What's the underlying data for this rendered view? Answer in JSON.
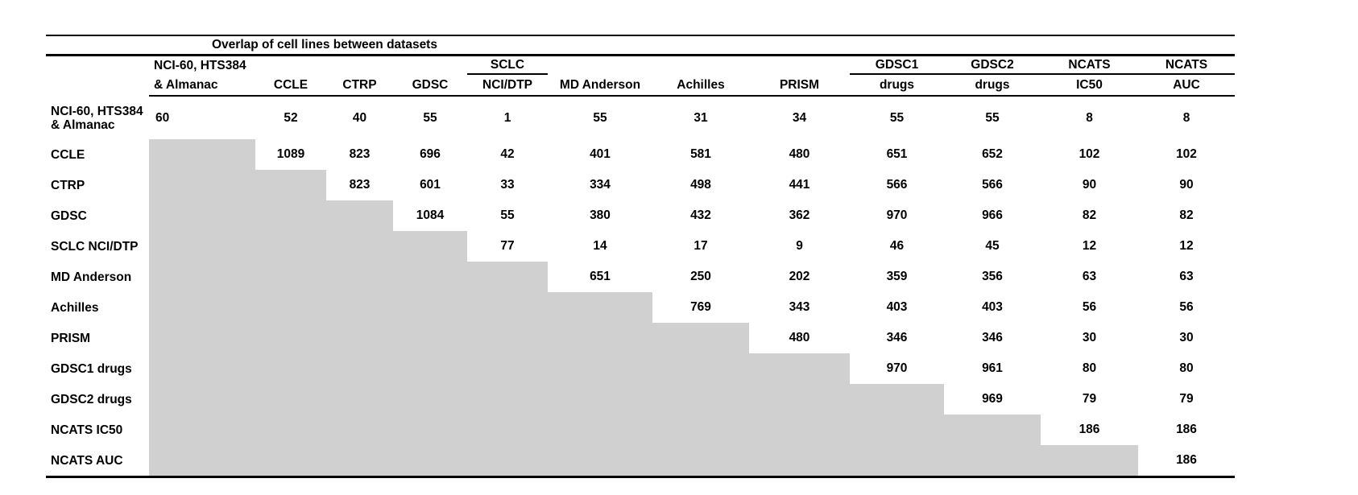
{
  "title": "Overlap of cell lines between datasets",
  "colors": {
    "background": "#ffffff",
    "text": "#000000",
    "rules": "#000000",
    "shaded_cell": "#d0d0d0"
  },
  "table": {
    "columns": [
      {
        "id": "nci60-almanac",
        "line1": "NCI-60, HTS384",
        "line2": "& Almanac",
        "align": "left",
        "underline": false
      },
      {
        "id": "ccle",
        "line1": "",
        "line2": "CCLE",
        "underline": false
      },
      {
        "id": "ctrp",
        "line1": "",
        "line2": "CTRP",
        "underline": false
      },
      {
        "id": "gdsc",
        "line1": "",
        "line2": "GDSC",
        "underline": false
      },
      {
        "id": "sclc-ncidtp",
        "line1": "SCLC",
        "line2": "NCI/DTP",
        "underline": true
      },
      {
        "id": "md-anderson",
        "line1": "",
        "line2": "MD Anderson",
        "underline": false
      },
      {
        "id": "achilles",
        "line1": "",
        "line2": "Achilles",
        "underline": false
      },
      {
        "id": "prism",
        "line1": "",
        "line2": "PRISM",
        "underline": false
      },
      {
        "id": "gdsc1-drugs",
        "line1": "GDSC1",
        "line2": "drugs",
        "underline": true
      },
      {
        "id": "gdsc2-drugs",
        "line1": "GDSC2",
        "line2": "drugs",
        "underline": true
      },
      {
        "id": "ncats-ic50",
        "line1": "NCATS",
        "line2": "IC50",
        "underline": true
      },
      {
        "id": "ncats-auc",
        "line1": "NCATS",
        "line2": "AUC",
        "underline": true
      }
    ],
    "rows": [
      {
        "id": "nci60-almanac",
        "label_lines": [
          "NCI-60, HTS384",
          "& Almanac"
        ],
        "values": [
          60,
          52,
          40,
          55,
          1,
          55,
          31,
          34,
          55,
          55,
          8,
          8
        ]
      },
      {
        "id": "ccle",
        "label_lines": [
          "CCLE"
        ],
        "values": [
          null,
          1089,
          823,
          696,
          42,
          401,
          581,
          480,
          651,
          652,
          102,
          102
        ]
      },
      {
        "id": "ctrp",
        "label_lines": [
          "CTRP"
        ],
        "values": [
          null,
          null,
          823,
          601,
          33,
          334,
          498,
          441,
          566,
          566,
          90,
          90
        ]
      },
      {
        "id": "gdsc",
        "label_lines": [
          "GDSC"
        ],
        "values": [
          null,
          null,
          null,
          1084,
          55,
          380,
          432,
          362,
          970,
          966,
          82,
          82
        ]
      },
      {
        "id": "sclc-ncidtp",
        "label_lines": [
          "SCLC NCI/DTP"
        ],
        "values": [
          null,
          null,
          null,
          null,
          77,
          14,
          17,
          9,
          46,
          45,
          12,
          12
        ]
      },
      {
        "id": "md-anderson",
        "label_lines": [
          "MD Anderson"
        ],
        "values": [
          null,
          null,
          null,
          null,
          null,
          651,
          250,
          202,
          359,
          356,
          63,
          63
        ]
      },
      {
        "id": "achilles",
        "label_lines": [
          "Achilles"
        ],
        "values": [
          null,
          null,
          null,
          null,
          null,
          null,
          769,
          343,
          403,
          403,
          56,
          56
        ]
      },
      {
        "id": "prism",
        "label_lines": [
          "PRISM"
        ],
        "values": [
          null,
          null,
          null,
          null,
          null,
          null,
          null,
          480,
          346,
          346,
          30,
          30
        ]
      },
      {
        "id": "gdsc1-drugs",
        "label_lines": [
          "GDSC1 drugs"
        ],
        "values": [
          null,
          null,
          null,
          null,
          null,
          null,
          null,
          null,
          970,
          961,
          80,
          80
        ]
      },
      {
        "id": "gdsc2-drugs",
        "label_lines": [
          "GDSC2 drugs"
        ],
        "values": [
          null,
          null,
          null,
          null,
          null,
          null,
          null,
          null,
          null,
          969,
          79,
          79
        ]
      },
      {
        "id": "ncats-ic50",
        "label_lines": [
          "NCATS IC50"
        ],
        "values": [
          null,
          null,
          null,
          null,
          null,
          null,
          null,
          null,
          null,
          null,
          186,
          186
        ]
      },
      {
        "id": "ncats-auc",
        "label_lines": [
          "NCATS AUC"
        ],
        "values": [
          null,
          null,
          null,
          null,
          null,
          null,
          null,
          null,
          null,
          null,
          null,
          186
        ]
      }
    ]
  },
  "chart_data": {
    "type": "table",
    "title": "Overlap of cell lines between datasets",
    "columns": [
      "NCI-60, HTS384 & Almanac",
      "CCLE",
      "CTRP",
      "GDSC",
      "SCLC NCI/DTP",
      "MD Anderson",
      "Achilles",
      "PRISM",
      "GDSC1 drugs",
      "GDSC2 drugs",
      "NCATS IC50",
      "NCATS AUC"
    ],
    "rows": [
      "NCI-60, HTS384 & Almanac",
      "CCLE",
      "CTRP",
      "GDSC",
      "SCLC NCI/DTP",
      "MD Anderson",
      "Achilles",
      "PRISM",
      "GDSC1 drugs",
      "GDSC2 drugs",
      "NCATS IC50",
      "NCATS AUC"
    ],
    "matrix_upper_triangle": [
      [
        60,
        52,
        40,
        55,
        1,
        55,
        31,
        34,
        55,
        55,
        8,
        8
      ],
      [
        null,
        1089,
        823,
        696,
        42,
        401,
        581,
        480,
        651,
        652,
        102,
        102
      ],
      [
        null,
        null,
        823,
        601,
        33,
        334,
        498,
        441,
        566,
        566,
        90,
        90
      ],
      [
        null,
        null,
        null,
        1084,
        55,
        380,
        432,
        362,
        970,
        966,
        82,
        82
      ],
      [
        null,
        null,
        null,
        null,
        77,
        14,
        17,
        9,
        46,
        45,
        12,
        12
      ],
      [
        null,
        null,
        null,
        null,
        null,
        651,
        250,
        202,
        359,
        356,
        63,
        63
      ],
      [
        null,
        null,
        null,
        null,
        null,
        null,
        769,
        343,
        403,
        403,
        56,
        56
      ],
      [
        null,
        null,
        null,
        null,
        null,
        null,
        null,
        480,
        346,
        346,
        30,
        30
      ],
      [
        null,
        null,
        null,
        null,
        null,
        null,
        null,
        null,
        970,
        961,
        80,
        80
      ],
      [
        null,
        null,
        null,
        null,
        null,
        null,
        null,
        null,
        null,
        969,
        79,
        79
      ],
      [
        null,
        null,
        null,
        null,
        null,
        null,
        null,
        null,
        null,
        null,
        186,
        186
      ],
      [
        null,
        null,
        null,
        null,
        null,
        null,
        null,
        null,
        null,
        null,
        null,
        186
      ]
    ],
    "layout_hints": {
      "lower_triangle": "shaded gray, no values",
      "grid": "off"
    }
  }
}
